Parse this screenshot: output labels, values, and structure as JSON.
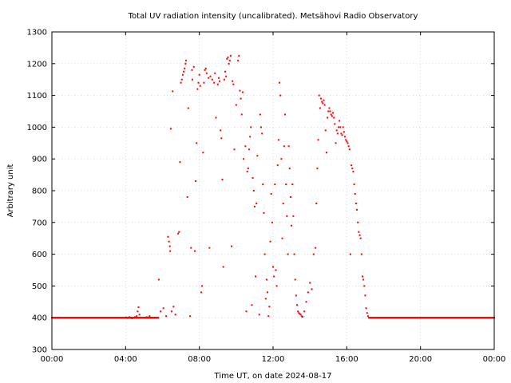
{
  "chart_data": {
    "type": "scatter",
    "title": "Total UV radiation intensity (uncalibrated). Metsähovi Radio Observatory",
    "xlabel": "Time UT, on date 2024-08-17",
    "ylabel": "Arbitrary unit",
    "xlim": [
      0,
      24
    ],
    "ylim": [
      300,
      1300
    ],
    "x_unit": "hours UT",
    "x_ticks": [
      0,
      4,
      8,
      12,
      16,
      20,
      24
    ],
    "x_tick_labels": [
      "00:00",
      "04:00",
      "08:00",
      "12:00",
      "16:00",
      "20:00",
      "00:00"
    ],
    "y_ticks": [
      300,
      400,
      500,
      600,
      700,
      800,
      900,
      1000,
      1100,
      1200,
      1300
    ],
    "y_tick_labels": [
      "300",
      "400",
      "500",
      "600",
      "700",
      "800",
      "900",
      "1000",
      "1100",
      "1200",
      "1300"
    ],
    "grid": true,
    "marker_color": "#ff0000",
    "series": [
      {
        "baseline": {
          "value": 400,
          "from": 0,
          "to": 24,
          "step": 0.025,
          "gaps": [
            [
              5.8,
              17.2
            ]
          ]
        },
        "points": [
          [
            4.02,
            401
          ],
          [
            4.1,
            399
          ],
          [
            4.2,
            402
          ],
          [
            4.35,
            398
          ],
          [
            4.5,
            402
          ],
          [
            4.6,
            405
          ],
          [
            4.65,
            420
          ],
          [
            4.7,
            433
          ],
          [
            4.75,
            410
          ],
          [
            5.15,
            402
          ],
          [
            5.3,
            405
          ],
          [
            5.8,
            520
          ],
          [
            5.9,
            420
          ],
          [
            6.05,
            430
          ],
          [
            6.2,
            405
          ],
          [
            6.3,
            655
          ],
          [
            6.35,
            640
          ],
          [
            6.4,
            625
          ],
          [
            6.42,
            610
          ],
          [
            6.45,
            995
          ],
          [
            6.5,
            420
          ],
          [
            6.55,
            1113
          ],
          [
            6.6,
            435
          ],
          [
            6.7,
            410
          ],
          [
            6.85,
            665
          ],
          [
            6.9,
            670
          ],
          [
            6.95,
            890
          ],
          [
            7.0,
            1140
          ],
          [
            7.05,
            1150
          ],
          [
            7.1,
            1165
          ],
          [
            7.15,
            1175
          ],
          [
            7.2,
            1185
          ],
          [
            7.25,
            1200
          ],
          [
            7.28,
            1210
          ],
          [
            7.35,
            780
          ],
          [
            7.4,
            1060
          ],
          [
            7.5,
            405
          ],
          [
            7.55,
            620
          ],
          [
            7.6,
            1180
          ],
          [
            7.62,
            1150
          ],
          [
            7.7,
            1190
          ],
          [
            7.75,
            610
          ],
          [
            7.8,
            830
          ],
          [
            7.85,
            950
          ],
          [
            7.9,
            1120
          ],
          [
            7.95,
            1140
          ],
          [
            8.0,
            1165
          ],
          [
            8.05,
            1130
          ],
          [
            8.1,
            480
          ],
          [
            8.15,
            500
          ],
          [
            8.2,
            920
          ],
          [
            8.25,
            1140
          ],
          [
            8.3,
            1180
          ],
          [
            8.35,
            1185
          ],
          [
            8.4,
            1170
          ],
          [
            8.5,
            1155
          ],
          [
            8.55,
            620
          ],
          [
            8.6,
            1160
          ],
          [
            8.7,
            1150
          ],
          [
            8.8,
            1140
          ],
          [
            8.85,
            1170
          ],
          [
            8.9,
            1030
          ],
          [
            9.0,
            1135
          ],
          [
            9.05,
            1155
          ],
          [
            9.1,
            1145
          ],
          [
            9.15,
            990
          ],
          [
            9.2,
            965
          ],
          [
            9.25,
            835
          ],
          [
            9.3,
            560
          ],
          [
            9.35,
            1150
          ],
          [
            9.4,
            1175
          ],
          [
            9.45,
            1160
          ],
          [
            9.5,
            1215
          ],
          [
            9.55,
            1220
          ],
          [
            9.6,
            1200
          ],
          [
            9.65,
            1210
          ],
          [
            9.7,
            1225
          ],
          [
            9.75,
            625
          ],
          [
            9.8,
            1145
          ],
          [
            9.85,
            1135
          ],
          [
            9.9,
            930
          ],
          [
            10.0,
            1070
          ],
          [
            10.1,
            1210
          ],
          [
            10.15,
            1225
          ],
          [
            10.2,
            1115
          ],
          [
            10.25,
            1090
          ],
          [
            10.3,
            1040
          ],
          [
            10.35,
            1110
          ],
          [
            10.4,
            900
          ],
          [
            10.5,
            940
          ],
          [
            10.55,
            420
          ],
          [
            10.6,
            860
          ],
          [
            10.65,
            870
          ],
          [
            10.7,
            930
          ],
          [
            10.75,
            970
          ],
          [
            10.8,
            1000
          ],
          [
            10.85,
            440
          ],
          [
            10.9,
            840
          ],
          [
            10.95,
            800
          ],
          [
            11.0,
            750
          ],
          [
            11.05,
            530
          ],
          [
            11.1,
            760
          ],
          [
            11.15,
            910
          ],
          [
            11.25,
            410
          ],
          [
            11.3,
            1040
          ],
          [
            11.35,
            1000
          ],
          [
            11.4,
            980
          ],
          [
            11.45,
            820
          ],
          [
            11.5,
            730
          ],
          [
            11.55,
            600
          ],
          [
            11.6,
            460
          ],
          [
            11.65,
            520
          ],
          [
            11.7,
            480
          ],
          [
            11.75,
            405
          ],
          [
            11.8,
            435
          ],
          [
            11.85,
            640
          ],
          [
            11.9,
            790
          ],
          [
            11.95,
            700
          ],
          [
            12.0,
            560
          ],
          [
            12.05,
            530
          ],
          [
            12.1,
            820
          ],
          [
            12.15,
            550
          ],
          [
            12.2,
            500
          ],
          [
            12.25,
            880
          ],
          [
            12.3,
            960
          ],
          [
            12.35,
            1140
          ],
          [
            12.4,
            1100
          ],
          [
            12.45,
            900
          ],
          [
            12.5,
            650
          ],
          [
            12.55,
            760
          ],
          [
            12.6,
            940
          ],
          [
            12.65,
            1040
          ],
          [
            12.7,
            820
          ],
          [
            12.75,
            720
          ],
          [
            12.8,
            600
          ],
          [
            12.85,
            940
          ],
          [
            12.9,
            870
          ],
          [
            12.95,
            780
          ],
          [
            13.0,
            690
          ],
          [
            13.05,
            820
          ],
          [
            13.1,
            720
          ],
          [
            13.15,
            600
          ],
          [
            13.2,
            520
          ],
          [
            13.25,
            470
          ],
          [
            13.3,
            440
          ],
          [
            13.35,
            420
          ],
          [
            13.4,
            415
          ],
          [
            13.45,
            412
          ],
          [
            13.5,
            410
          ],
          [
            13.55,
            405
          ],
          [
            13.6,
            403
          ],
          [
            13.7,
            420
          ],
          [
            13.8,
            450
          ],
          [
            13.9,
            480
          ],
          [
            14.0,
            510
          ],
          [
            14.1,
            490
          ],
          [
            14.2,
            600
          ],
          [
            14.3,
            620
          ],
          [
            14.35,
            760
          ],
          [
            14.4,
            870
          ],
          [
            14.45,
            960
          ],
          [
            14.5,
            1100
          ],
          [
            14.55,
            1060
          ],
          [
            14.6,
            1090
          ],
          [
            14.65,
            1080
          ],
          [
            14.7,
            1075
          ],
          [
            14.75,
            1085
          ],
          [
            14.8,
            1070
          ],
          [
            14.85,
            990
          ],
          [
            14.9,
            920
          ],
          [
            14.95,
            1030
          ],
          [
            15.0,
            1050
          ],
          [
            15.05,
            1060
          ],
          [
            15.1,
            1050
          ],
          [
            15.15,
            1040
          ],
          [
            15.2,
            1035
          ],
          [
            15.25,
            1045
          ],
          [
            15.3,
            1030
          ],
          [
            15.35,
            1010
          ],
          [
            15.4,
            950
          ],
          [
            15.45,
            990
          ],
          [
            15.5,
            980
          ],
          [
            15.55,
            1000
          ],
          [
            15.6,
            1020
          ],
          [
            15.65,
            1000
          ],
          [
            15.7,
            980
          ],
          [
            15.75,
            975
          ],
          [
            15.8,
            1000
          ],
          [
            15.85,
            985
          ],
          [
            15.9,
            970
          ],
          [
            15.95,
            960
          ],
          [
            16.0,
            955
          ],
          [
            16.05,
            950
          ],
          [
            16.1,
            940
          ],
          [
            16.15,
            930
          ],
          [
            16.2,
            600
          ],
          [
            16.25,
            880
          ],
          [
            16.3,
            870
          ],
          [
            16.35,
            860
          ],
          [
            16.4,
            820
          ],
          [
            16.45,
            790
          ],
          [
            16.5,
            760
          ],
          [
            16.55,
            740
          ],
          [
            16.6,
            700
          ],
          [
            16.65,
            670
          ],
          [
            16.7,
            660
          ],
          [
            16.75,
            650
          ],
          [
            16.8,
            600
          ],
          [
            16.85,
            530
          ],
          [
            16.9,
            520
          ],
          [
            16.95,
            500
          ],
          [
            17.0,
            470
          ],
          [
            17.05,
            430
          ],
          [
            17.1,
            415
          ],
          [
            17.15,
            405
          ]
        ]
      }
    ]
  }
}
